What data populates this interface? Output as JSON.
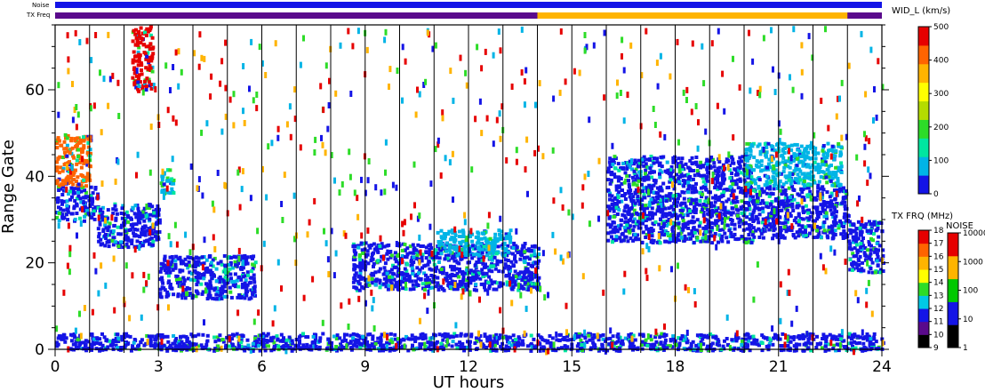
{
  "chart_data": {
    "type": "heatmap",
    "xlabel": "UT hours",
    "ylabel": "Range Gate",
    "xlim": [
      0,
      24
    ],
    "ylim": [
      0,
      75
    ],
    "x_ticks": [
      "0",
      "3",
      "6",
      "9",
      "12",
      "15",
      "18",
      "21",
      "24"
    ],
    "y_ticks": [
      "0",
      "20",
      "40",
      "60"
    ],
    "grid": "vertical lines every hour",
    "top_strips": [
      {
        "label": "Noise",
        "base_color": "#1414e6",
        "segments": []
      },
      {
        "label": "TX Freq",
        "base_color": "#5a0a8c",
        "segments": [
          {
            "start": 14.0,
            "end": 23.0,
            "color": "#ffb400"
          }
        ]
      }
    ],
    "colorbars": [
      {
        "title": "WID_L (km/s)",
        "ticks": [
          "0",
          "100",
          "200",
          "300",
          "400",
          "500"
        ],
        "colors": [
          "#1414e6",
          "#00b4e6",
          "#00e6a0",
          "#2ddc28",
          "#b4dc00",
          "#ffff00",
          "#ffb400",
          "#ff6400",
          "#e60000"
        ]
      },
      {
        "title": "TX FRQ (MHz)",
        "ticks": [
          "9",
          "10",
          "11",
          "12",
          "13",
          "14",
          "15",
          "16",
          "17",
          "18"
        ],
        "colors": [
          "#000000",
          "#5a0a8c",
          "#1414e6",
          "#00c8e6",
          "#2ddc28",
          "#ffff00",
          "#ffb400",
          "#ff6400",
          "#e60000"
        ]
      },
      {
        "title": "NOISE",
        "ticks": [
          "1",
          "10",
          "100",
          "1000",
          "10000"
        ],
        "colors": [
          "#000000",
          "#1414e6",
          "#00c800",
          "#ffb400",
          "#e60000"
        ]
      }
    ],
    "echo_regions": [
      {
        "x0": 0.0,
        "x1": 1.2,
        "y0": 30,
        "y1": 38,
        "color": "#1414e6"
      },
      {
        "x0": 0.0,
        "x1": 1.0,
        "y0": 38,
        "y1": 50,
        "color": "#ff6400"
      },
      {
        "x0": 1.2,
        "x1": 3.0,
        "y0": 24,
        "y1": 34,
        "color": "#1414e6"
      },
      {
        "x0": 3.0,
        "x1": 5.8,
        "y0": 12,
        "y1": 22,
        "color": "#1414e6"
      },
      {
        "x0": 2.2,
        "x1": 2.8,
        "y0": 60,
        "y1": 75,
        "color": "#e60000"
      },
      {
        "x0": 3.0,
        "x1": 3.4,
        "y0": 36,
        "y1": 42,
        "color": "#00b4e6"
      },
      {
        "x0": 8.6,
        "x1": 14.0,
        "y0": 14,
        "y1": 25,
        "color": "#1414e6"
      },
      {
        "x0": 11.0,
        "x1": 13.2,
        "y0": 22,
        "y1": 28,
        "color": "#00b4e6"
      },
      {
        "x0": 16.0,
        "x1": 20.2,
        "y0": 25,
        "y1": 45,
        "color": "#1414e6"
      },
      {
        "x0": 20.2,
        "x1": 23.0,
        "y0": 26,
        "y1": 38,
        "color": "#1414e6"
      },
      {
        "x0": 20.0,
        "x1": 22.8,
        "y0": 38,
        "y1": 48,
        "color": "#00b4e6"
      },
      {
        "x0": 23.0,
        "x1": 24.0,
        "y0": 18,
        "y1": 30,
        "color": "#1414e6"
      },
      {
        "x0": 0.0,
        "x1": 24.0,
        "y0": 0,
        "y1": 4,
        "color": "#1414e6"
      }
    ]
  },
  "colors": {
    "purple": "#5a0a8c",
    "blue": "#1414e6",
    "orange": "#ffb400",
    "red": "#e60000"
  }
}
